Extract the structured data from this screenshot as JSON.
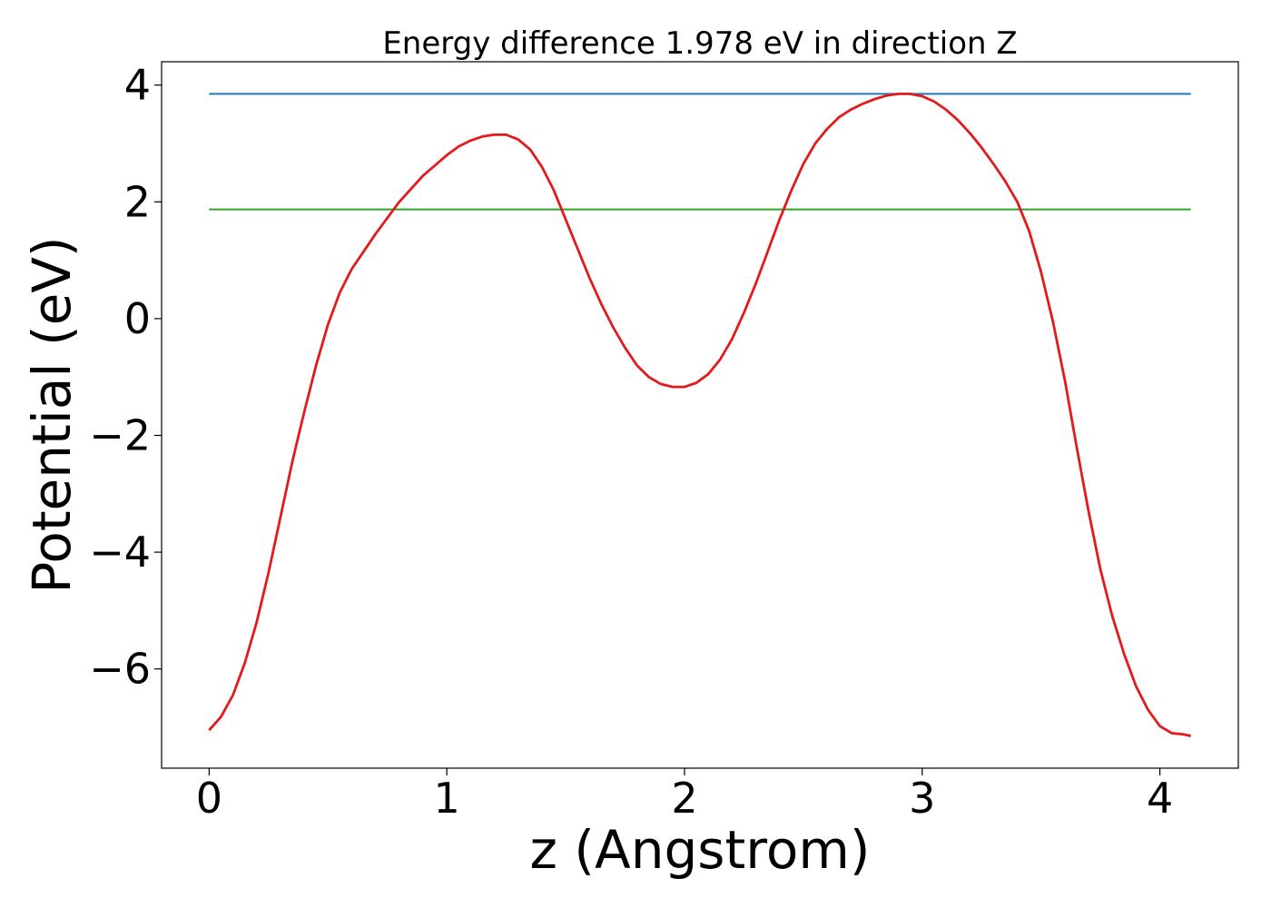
{
  "chart_data": {
    "type": "line",
    "title": "Energy difference 1.978 eV in direction Z",
    "xlabel": "z (Angstrom)",
    "ylabel": "Potential (eV)",
    "xlim": [
      -0.2,
      4.33
    ],
    "ylim": [
      -7.7,
      4.4
    ],
    "xticks": [
      0,
      1,
      2,
      3,
      4
    ],
    "yticks": [
      -6,
      -4,
      -2,
      0,
      2,
      4
    ],
    "xtick_labels": [
      "0",
      "1",
      "2",
      "3",
      "4"
    ],
    "ytick_labels": [
      "−6",
      "−4",
      "−2",
      "0",
      "2",
      "4"
    ],
    "grid": false,
    "colors": {
      "potential": "#e31a1c",
      "max_line": "#1f78b4",
      "second_line": "#33a02c"
    },
    "series": [
      {
        "x": [
          0,
          0.05,
          0.1,
          0.15,
          0.2,
          0.25,
          0.3,
          0.35,
          0.4,
          0.45,
          0.5,
          0.55,
          0.6,
          0.7,
          0.8,
          0.9,
          1.0,
          1.05,
          1.1,
          1.15,
          1.2,
          1.25,
          1.3,
          1.35,
          1.4,
          1.45,
          1.5,
          1.55,
          1.6,
          1.65,
          1.7,
          1.75,
          1.8,
          1.85,
          1.9,
          1.95,
          2.0,
          2.05,
          2.1,
          2.15,
          2.2,
          2.25,
          2.3,
          2.35,
          2.4,
          2.45,
          2.5,
          2.55,
          2.6,
          2.65,
          2.7,
          2.75,
          2.8,
          2.85,
          2.9,
          2.95,
          3.0,
          3.05,
          3.1,
          3.15,
          3.2,
          3.25,
          3.3,
          3.35,
          3.4,
          3.45,
          3.5,
          3.55,
          3.6,
          3.65,
          3.7,
          3.75,
          3.8,
          3.85,
          3.9,
          3.95,
          4.0,
          4.05,
          4.1,
          4.13
        ],
        "y": [
          -7.05,
          -6.82,
          -6.45,
          -5.9,
          -5.2,
          -4.35,
          -3.4,
          -2.45,
          -1.6,
          -0.8,
          -0.1,
          0.45,
          0.85,
          1.45,
          2.0,
          2.45,
          2.8,
          2.95,
          3.05,
          3.12,
          3.15,
          3.15,
          3.07,
          2.9,
          2.6,
          2.2,
          1.7,
          1.2,
          0.7,
          0.25,
          -0.15,
          -0.5,
          -0.8,
          -1.0,
          -1.12,
          -1.17,
          -1.17,
          -1.1,
          -0.95,
          -0.7,
          -0.35,
          0.1,
          0.6,
          1.15,
          1.7,
          2.2,
          2.65,
          3.0,
          3.25,
          3.45,
          3.58,
          3.68,
          3.76,
          3.82,
          3.85,
          3.85,
          3.81,
          3.72,
          3.58,
          3.4,
          3.18,
          2.93,
          2.65,
          2.35,
          2.0,
          1.5,
          0.8,
          -0.05,
          -1.05,
          -2.2,
          -3.3,
          -4.3,
          -5.1,
          -5.75,
          -6.3,
          -6.7,
          -6.98,
          -7.1,
          -7.12,
          -7.15
        ]
      },
      {
        "x": [
          0,
          4.13
        ],
        "y": [
          3.85,
          3.85
        ]
      },
      {
        "x": [
          0,
          4.13
        ],
        "y": [
          1.87,
          1.87
        ]
      }
    ]
  }
}
